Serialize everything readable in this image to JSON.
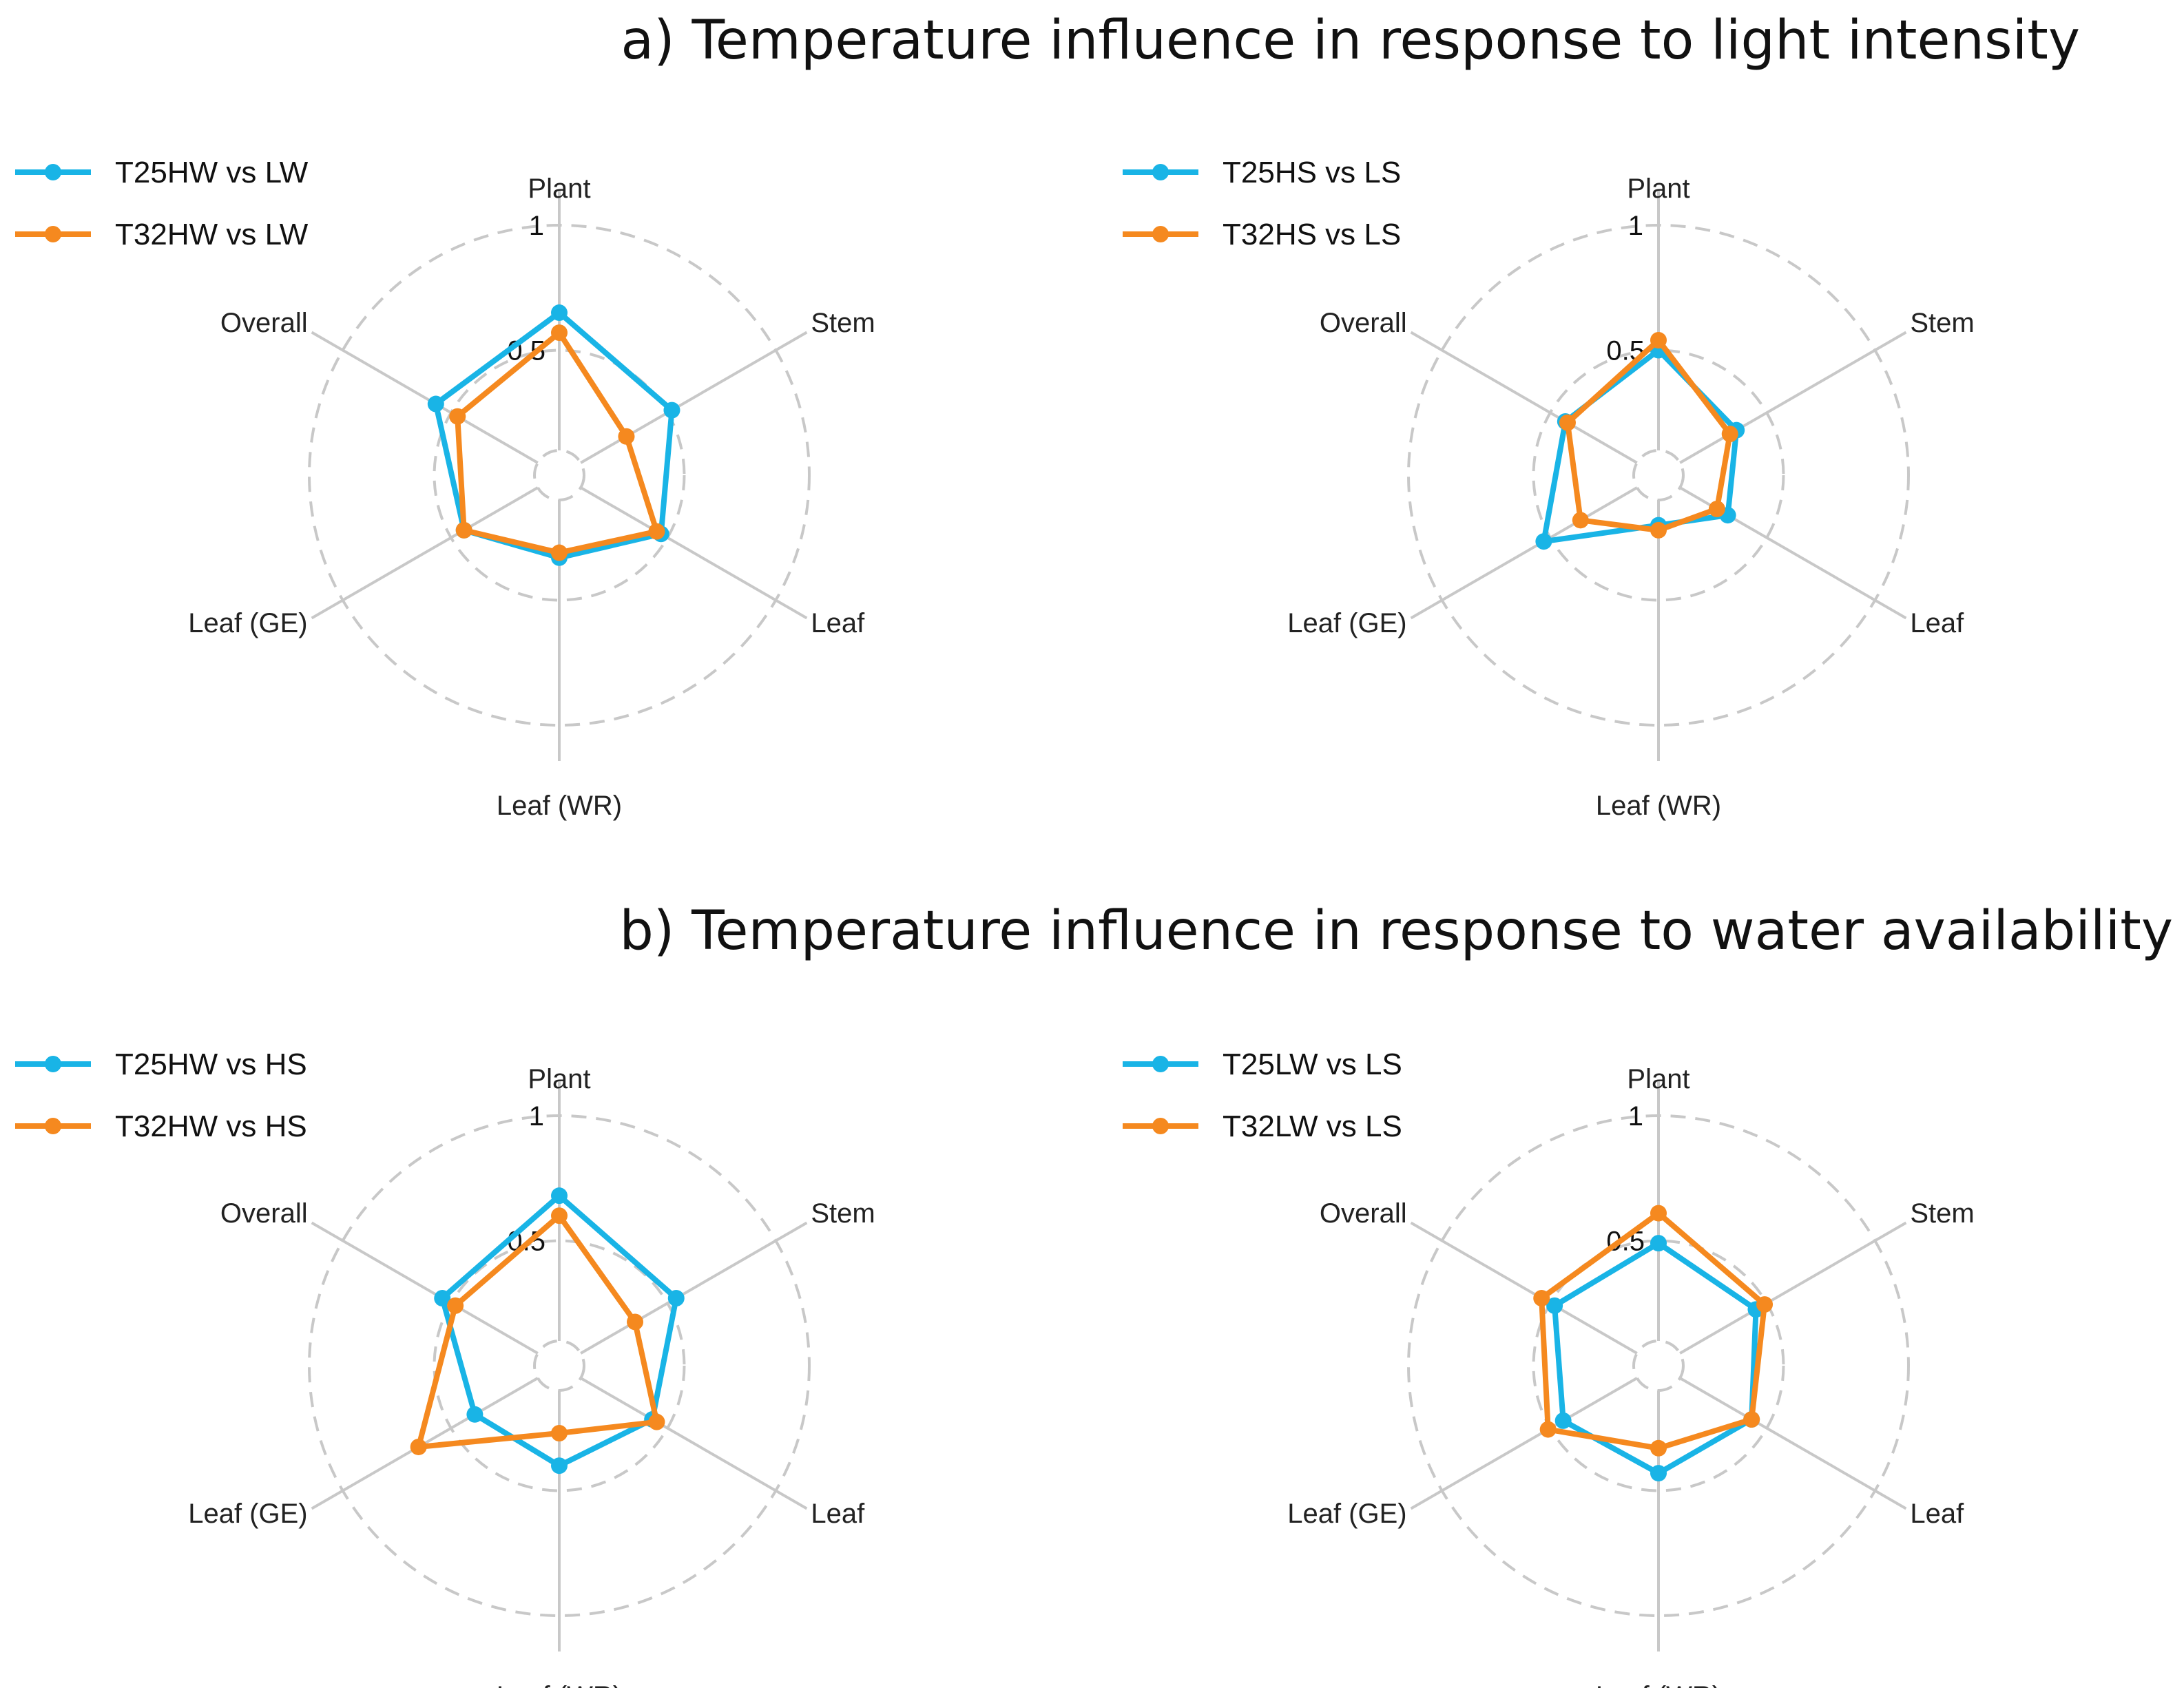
{
  "headings": {
    "a": "a) Temperature influence in response to light intensity",
    "b": "b) Temperature influence in response to water availability"
  },
  "colors": {
    "series1": "#19b4e6",
    "series2": "#f5891f",
    "grid": "#c8c8c8"
  },
  "chart_data": [
    {
      "type": "radar",
      "panel": "a-left",
      "axes": [
        "Plant",
        "Stem",
        "Leaf",
        "Leaf (WR)",
        "Leaf (GE)",
        "Overall"
      ],
      "tick_labels": [
        "0.5",
        "1"
      ],
      "rlim": [
        0,
        1
      ],
      "legend_position": "top-left",
      "series": [
        {
          "name": "T25HW vs LW",
          "values": [
            0.65,
            0.52,
            0.47,
            0.33,
            0.44,
            0.57
          ]
        },
        {
          "name": "T32HW vs LW",
          "values": [
            0.57,
            0.31,
            0.45,
            0.31,
            0.44,
            0.47
          ]
        }
      ]
    },
    {
      "type": "radar",
      "panel": "a-right",
      "axes": [
        "Plant",
        "Stem",
        "Leaf",
        "Leaf (WR)",
        "Leaf (GE)",
        "Overall"
      ],
      "tick_labels": [
        "0.5",
        "1"
      ],
      "rlim": [
        0,
        1
      ],
      "legend_position": "top-left",
      "series": [
        {
          "name": "T25HS vs LS",
          "values": [
            0.5,
            0.36,
            0.32,
            0.2,
            0.53,
            0.43
          ]
        },
        {
          "name": "T32HS vs LS",
          "values": [
            0.54,
            0.33,
            0.27,
            0.22,
            0.36,
            0.42
          ]
        }
      ]
    },
    {
      "type": "radar",
      "panel": "b-left",
      "axes": [
        "Plant",
        "Stem",
        "Leaf",
        "Leaf (WR)",
        "Leaf (GE)",
        "Overall"
      ],
      "tick_labels": [
        "0.5",
        "1"
      ],
      "rlim": [
        0,
        1
      ],
      "legend_position": "top-left",
      "series": [
        {
          "name": "T25HW vs HS",
          "values": [
            0.68,
            0.54,
            0.43,
            0.4,
            0.39,
            0.54
          ]
        },
        {
          "name": "T32HW vs HS",
          "values": [
            0.6,
            0.35,
            0.45,
            0.27,
            0.65,
            0.48
          ]
        }
      ]
    },
    {
      "type": "radar",
      "panel": "b-right",
      "axes": [
        "Plant",
        "Stem",
        "Leaf",
        "Leaf (WR)",
        "Leaf (GE)",
        "Overall"
      ],
      "tick_labels": [
        "0.5",
        "1"
      ],
      "rlim": [
        0,
        1
      ],
      "legend_position": "top-left",
      "series": [
        {
          "name": "T25LW vs LS",
          "values": [
            0.49,
            0.45,
            0.43,
            0.43,
            0.44,
            0.48
          ]
        },
        {
          "name": "T32LW vs LS",
          "values": [
            0.61,
            0.49,
            0.43,
            0.33,
            0.51,
            0.54
          ]
        }
      ]
    }
  ]
}
